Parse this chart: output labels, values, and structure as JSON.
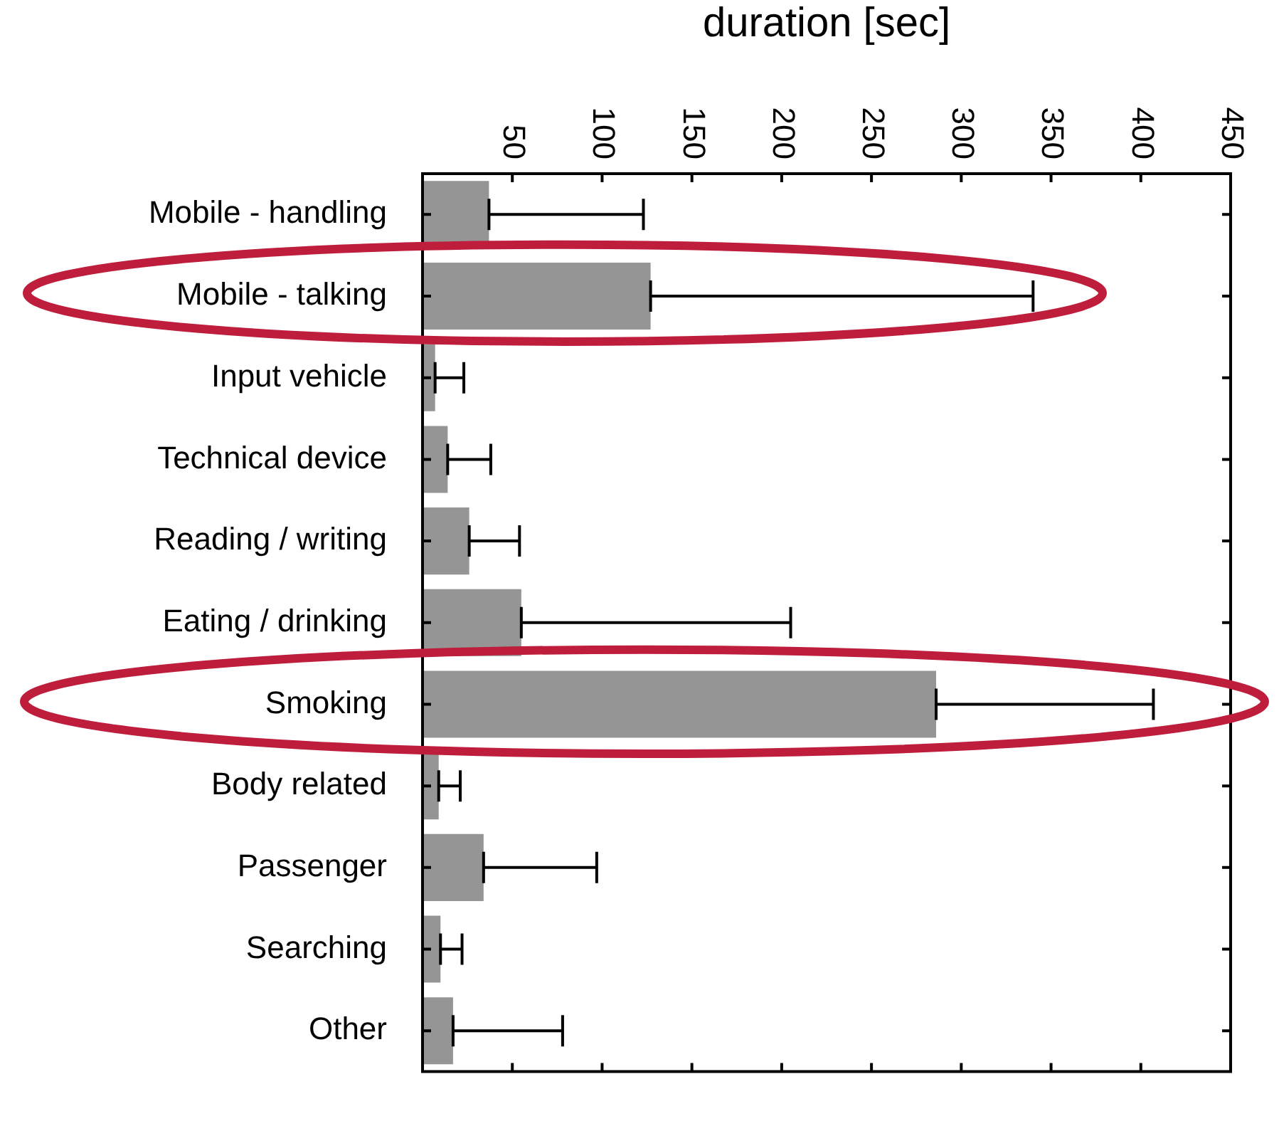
{
  "chart_data": {
    "type": "bar",
    "orientation": "horizontal",
    "xlabel": "duration [sec]",
    "categories": [
      "Mobile - handling",
      "Mobile - talking",
      "Input vehicle",
      "Technical device",
      "Reading / writing",
      "Eating / drinking",
      "Smoking",
      "Body related",
      "Passenger",
      "Searching",
      "Other"
    ],
    "values": [
      37,
      127,
      7,
      14,
      26,
      55,
      286,
      9,
      34,
      10,
      17
    ],
    "errors": [
      [
        37,
        123
      ],
      [
        127,
        340
      ],
      [
        7,
        23
      ],
      [
        14,
        38
      ],
      [
        26,
        54
      ],
      [
        55,
        205
      ],
      [
        286,
        407
      ],
      [
        9,
        21
      ],
      [
        34,
        97
      ],
      [
        10,
        22
      ],
      [
        17,
        78
      ]
    ],
    "color": "#959595",
    "xlim": [
      0,
      450
    ],
    "xticks": [
      50,
      100,
      150,
      200,
      250,
      300,
      350,
      400,
      450
    ],
    "grid": false,
    "legend": false
  }
}
